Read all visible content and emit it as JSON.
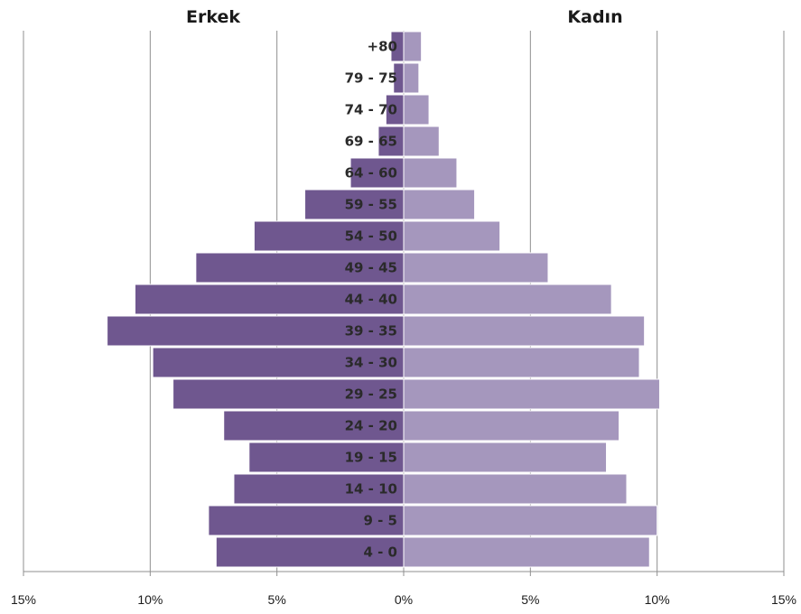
{
  "chart_data": {
    "type": "bar",
    "orientation": "horizontal",
    "title": "",
    "left_header": "Erkek",
    "right_header": "Kadın",
    "categories": [
      "+80",
      "79 - 75",
      "74 - 70",
      "69 - 65",
      "64 - 60",
      "59 - 55",
      "54 - 50",
      "49 - 45",
      "44 - 40",
      "39 - 35",
      "34 - 30",
      "29 - 25",
      "24 - 20",
      "19 - 15",
      "14 - 10",
      "9 - 5",
      "4 - 0"
    ],
    "series": [
      {
        "name": "Erkek",
        "color": "#6f578f",
        "values": [
          0.5,
          0.4,
          0.7,
          1.0,
          2.1,
          3.9,
          5.9,
          8.2,
          10.6,
          11.7,
          9.9,
          9.1,
          7.1,
          6.1,
          6.7,
          7.7,
          7.4
        ]
      },
      {
        "name": "Kadın",
        "color": "#a597bd",
        "values": [
          0.7,
          0.6,
          1.0,
          1.4,
          2.1,
          2.8,
          3.8,
          5.7,
          8.2,
          9.5,
          9.3,
          10.1,
          8.5,
          8.0,
          8.8,
          10.0,
          9.7
        ]
      }
    ],
    "xlim": [
      -15,
      15
    ],
    "xticks": [
      -15,
      -10,
      -5,
      0,
      5,
      10,
      15
    ],
    "xtick_labels": [
      "15%",
      "10%",
      "5%",
      "0%",
      "5%",
      "10%",
      "15%"
    ],
    "grid": true
  }
}
